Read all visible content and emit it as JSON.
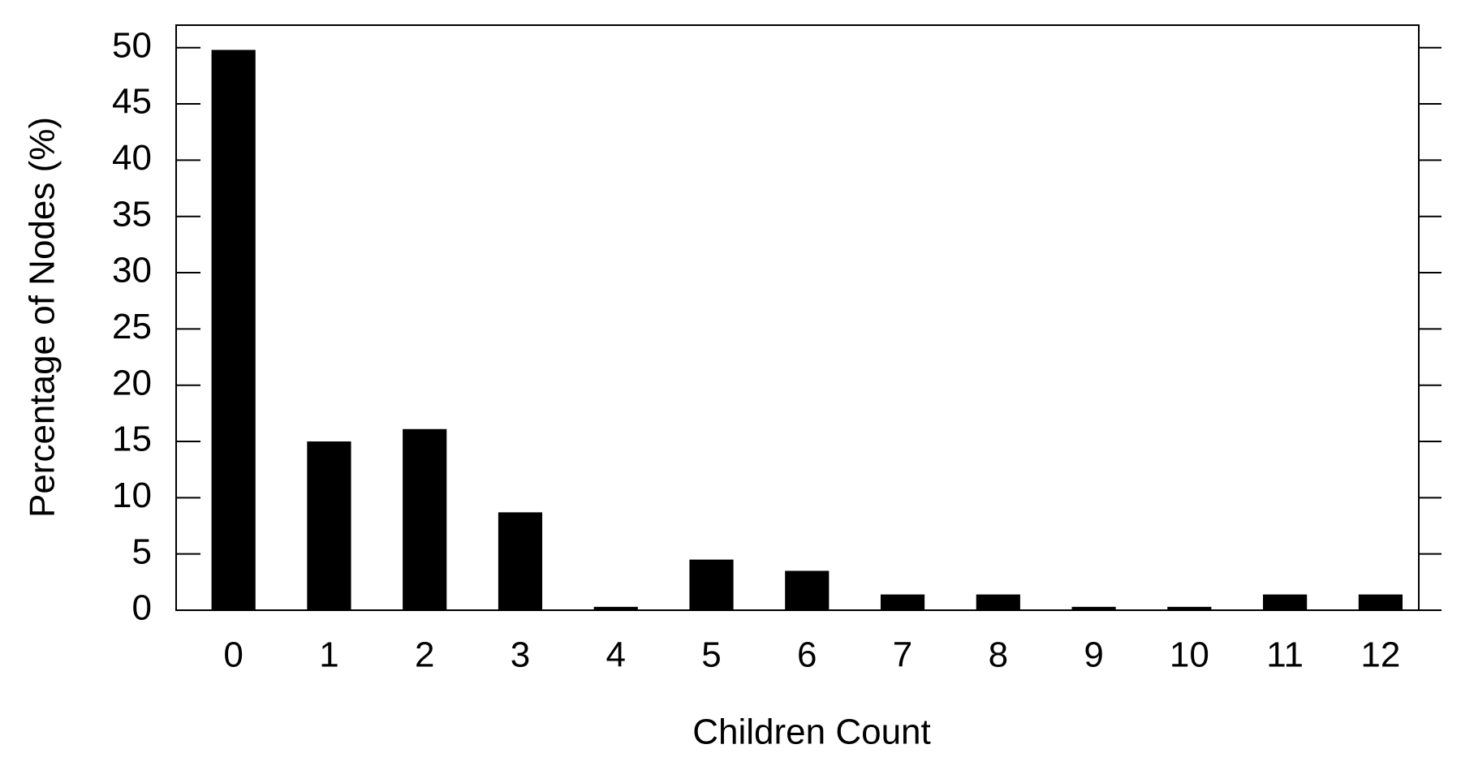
{
  "chart_data": {
    "type": "bar",
    "x_label": "Children Count",
    "y_label": "Percentage of Nodes (%)",
    "categories": [
      "0",
      "1",
      "2",
      "3",
      "4",
      "5",
      "6",
      "7",
      "8",
      "9",
      "10",
      "11",
      "12"
    ],
    "values": [
      49.8,
      15,
      16.1,
      8.7,
      0.3,
      4.5,
      3.5,
      1.4,
      1.4,
      0.3,
      0.3,
      1.4,
      1.4
    ],
    "color": "#000000",
    "ylim": [
      0,
      52
    ],
    "yticks": [
      0,
      5,
      10,
      15,
      20,
      25,
      30,
      35,
      40,
      45,
      50
    ],
    "grid": false
  }
}
